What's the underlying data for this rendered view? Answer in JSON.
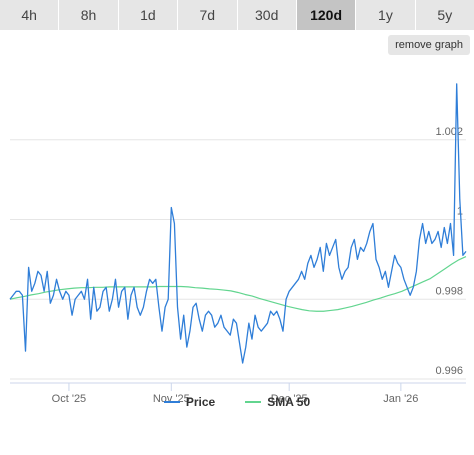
{
  "tabs": [
    {
      "label": "4h",
      "active": false
    },
    {
      "label": "8h",
      "active": false
    },
    {
      "label": "1d",
      "active": false
    },
    {
      "label": "7d",
      "active": false
    },
    {
      "label": "30d",
      "active": false
    },
    {
      "label": "120d",
      "active": true
    },
    {
      "label": "1y",
      "active": false
    },
    {
      "label": "5y",
      "active": false
    }
  ],
  "remove_graph_label": "remove graph",
  "chart_data": {
    "type": "line",
    "x_tick_labels": [
      "Oct '25",
      "Nov '25",
      "Dec '25",
      "Jan '26"
    ],
    "y_tick_labels": [
      "0.996",
      "0.998",
      "1",
      "1.002"
    ],
    "ylim": [
      0.9959,
      1.0039
    ],
    "grid": true,
    "legend_position": "bottom",
    "series": [
      {
        "name": "Price",
        "color": "#2f7ed8",
        "values": [
          0.998,
          0.9981,
          0.9982,
          0.9982,
          0.9981,
          0.9967,
          0.9988,
          0.9982,
          0.9984,
          0.9987,
          0.9986,
          0.9982,
          0.9987,
          0.9979,
          0.9981,
          0.9985,
          0.9982,
          0.998,
          0.9982,
          0.9981,
          0.9976,
          0.998,
          0.9981,
          0.9982,
          0.998,
          0.9985,
          0.9975,
          0.9983,
          0.9977,
          0.9978,
          0.9982,
          0.9983,
          0.9977,
          0.998,
          0.9985,
          0.9978,
          0.9982,
          0.9983,
          0.9975,
          0.9981,
          0.9983,
          0.9978,
          0.9976,
          0.9978,
          0.9982,
          0.9985,
          0.9984,
          0.9985,
          0.9978,
          0.9972,
          0.9978,
          0.998,
          1.0003,
          0.9999,
          0.9978,
          0.997,
          0.9976,
          0.9968,
          0.9972,
          0.9978,
          0.9979,
          0.9975,
          0.9972,
          0.9976,
          0.9977,
          0.9976,
          0.9973,
          0.9974,
          0.9976,
          0.9973,
          0.9972,
          0.9971,
          0.9975,
          0.9974,
          0.9969,
          0.9964,
          0.9968,
          0.9974,
          0.997,
          0.9976,
          0.9973,
          0.9972,
          0.9973,
          0.9974,
          0.9977,
          0.9976,
          0.9977,
          0.9975,
          0.9972,
          0.998,
          0.9982,
          0.9983,
          0.9984,
          0.9985,
          0.9987,
          0.9985,
          0.9989,
          0.9991,
          0.9988,
          0.999,
          0.9993,
          0.9987,
          0.9994,
          0.9991,
          0.9993,
          0.9995,
          0.9988,
          0.9985,
          0.9987,
          0.9988,
          0.9993,
          0.9995,
          0.999,
          0.9993,
          0.9992,
          0.9994,
          0.9997,
          0.9999,
          0.999,
          0.9988,
          0.9985,
          0.9987,
          0.9983,
          0.9987,
          0.9991,
          0.9989,
          0.9988,
          0.9985,
          0.9983,
          0.9981,
          0.9983,
          0.9987,
          0.9995,
          0.9999,
          0.9994,
          0.9997,
          0.9994,
          0.9995,
          0.9997,
          0.9993,
          0.9998,
          0.9994,
          0.9999,
          0.9991,
          1.0034,
          1.0005,
          0.9991,
          0.9992
        ]
      },
      {
        "name": "SMA 50",
        "color": "#62d58f",
        "values": [
          0.998,
          0.99804,
          0.99807,
          0.99811,
          0.99814,
          0.99818,
          0.99821,
          0.99824,
          0.99826,
          0.99828,
          0.99829,
          0.99829,
          0.9983,
          0.9983,
          0.99831,
          0.99831,
          0.99831,
          0.99831,
          0.99831,
          0.99831,
          0.99831,
          0.99832,
          0.99832,
          0.99832,
          0.99832,
          0.99831,
          0.99829,
          0.99828,
          0.99826,
          0.99825,
          0.99823,
          0.99821,
          0.99817,
          0.99812,
          0.99808,
          0.99802,
          0.99797,
          0.99792,
          0.99787,
          0.99782,
          0.99778,
          0.99774,
          0.99771,
          0.9977,
          0.9977,
          0.99772,
          0.99774,
          0.99778,
          0.99782,
          0.99787,
          0.99792,
          0.99798,
          0.99803,
          0.99809,
          0.99814,
          0.9982,
          0.99828,
          0.99836,
          0.99844,
          0.99852,
          0.99864,
          0.99876,
          0.99888,
          0.99899,
          0.99907
        ]
      }
    ]
  }
}
